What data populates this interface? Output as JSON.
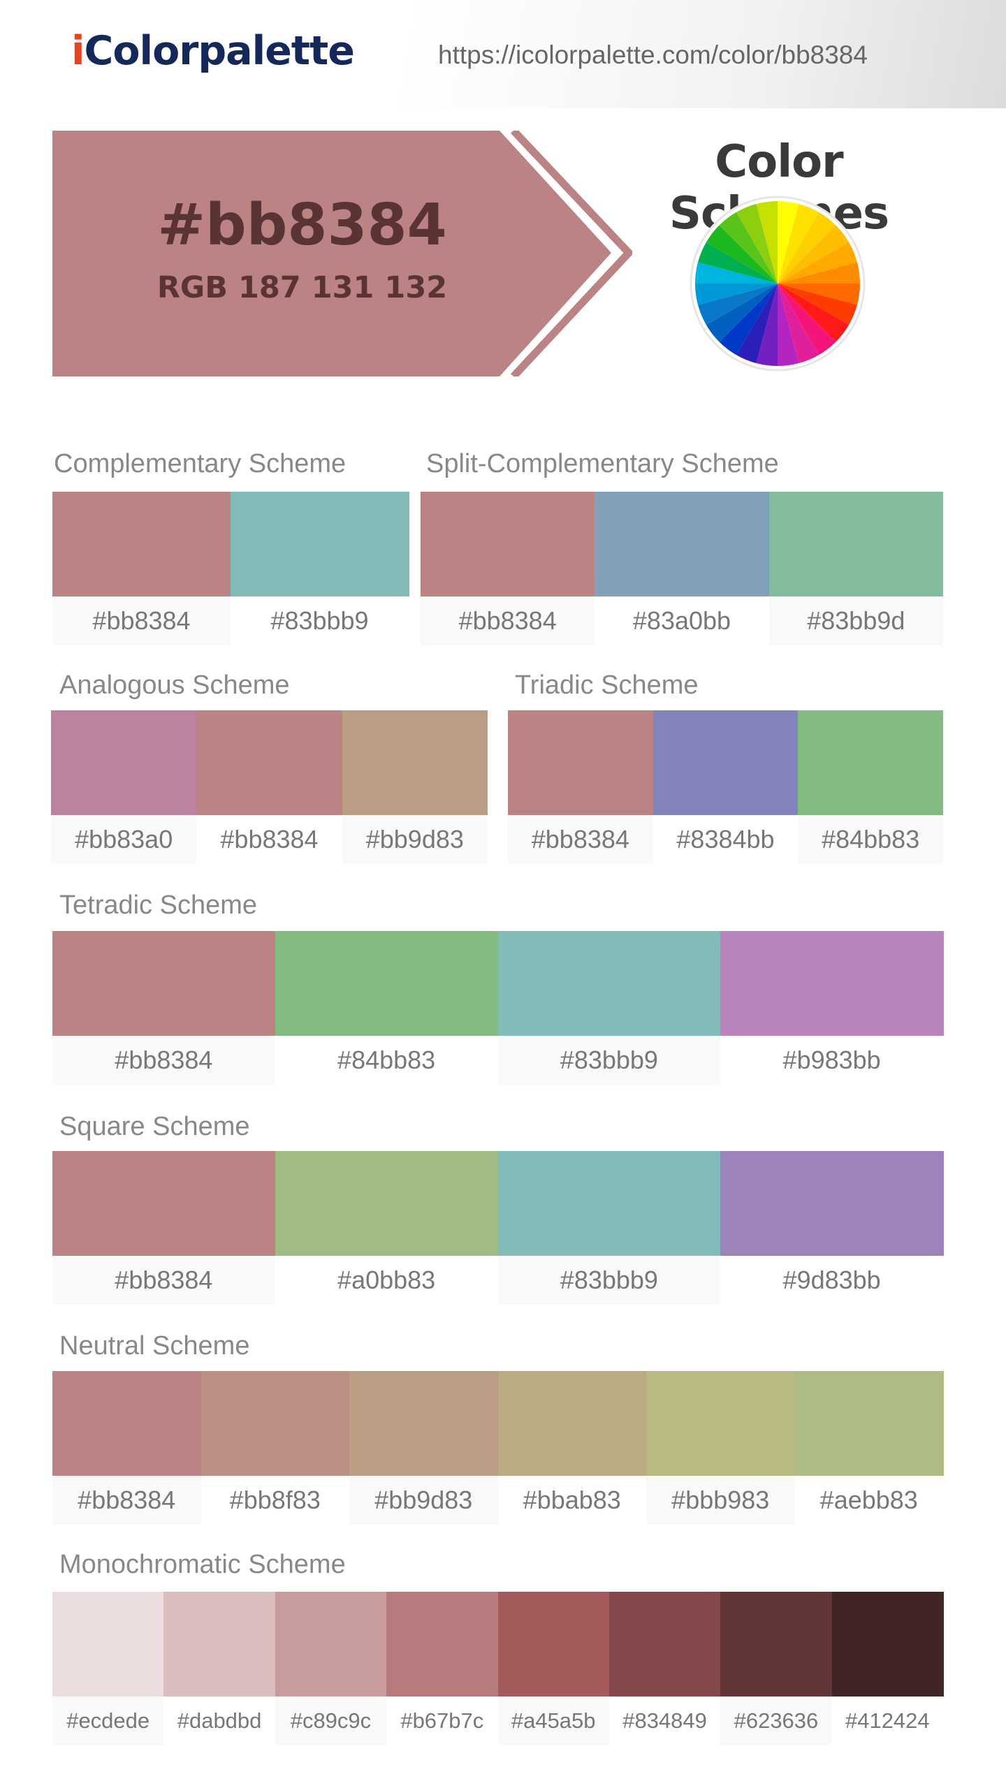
{
  "header": {
    "logo_i": "i",
    "logo_rest": "Colorpalette",
    "url": "https://icolorpalette.com/color/bb8384"
  },
  "hero": {
    "hex": "#bb8384",
    "rgb": "RGB 187 131 132",
    "color": "#bb8384"
  },
  "color_schemes_title": "Color Schemes",
  "wheel_colors": [
    "#ffff00",
    "#ffe100",
    "#ffd000",
    "#ffbe00",
    "#ffa800",
    "#ff8c00",
    "#ff6a00",
    "#ff3c00",
    "#ff1a1a",
    "#f5147a",
    "#e0209a",
    "#b424c0",
    "#7420c0",
    "#2a1fb8",
    "#0038c8",
    "#0060c0",
    "#0a78c8",
    "#0099d8",
    "#00b4e0",
    "#00b050",
    "#1db81d",
    "#5ac31a",
    "#8ccf10",
    "#c8e000"
  ],
  "schemes": {
    "complementary": {
      "title": "Complementary Scheme",
      "colors": [
        {
          "hex": "#bb8384"
        },
        {
          "hex": "#83bbb9"
        }
      ]
    },
    "split": {
      "title": "Split-Complementary Scheme",
      "colors": [
        {
          "hex": "#bb8384"
        },
        {
          "hex": "#83a0bb"
        },
        {
          "hex": "#83bb9d"
        }
      ]
    },
    "analogous": {
      "title": "Analogous Scheme",
      "colors": [
        {
          "hex": "#bb83a0"
        },
        {
          "hex": "#bb8384"
        },
        {
          "hex": "#bb9d83"
        }
      ]
    },
    "triadic": {
      "title": "Triadic Scheme",
      "colors": [
        {
          "hex": "#bb8384"
        },
        {
          "hex": "#8384bb"
        },
        {
          "hex": "#84bb83"
        }
      ]
    },
    "tetradic": {
      "title": "Tetradic Scheme",
      "colors": [
        {
          "hex": "#bb8384"
        },
        {
          "hex": "#84bb83"
        },
        {
          "hex": "#83bbb9"
        },
        {
          "hex": "#b983bb"
        }
      ]
    },
    "square": {
      "title": "Square Scheme",
      "colors": [
        {
          "hex": "#bb8384"
        },
        {
          "hex": "#a0bb83"
        },
        {
          "hex": "#83bbb9"
        },
        {
          "hex": "#9d83bb"
        }
      ]
    },
    "neutral": {
      "title": "Neutral Scheme",
      "colors": [
        {
          "hex": "#bb8384"
        },
        {
          "hex": "#bb8f83"
        },
        {
          "hex": "#bb9d83"
        },
        {
          "hex": "#bbab83"
        },
        {
          "hex": "#bbb983"
        },
        {
          "hex": "#aebb83"
        }
      ]
    },
    "monochromatic": {
      "title": "Monochromatic Scheme",
      "colors": [
        {
          "hex": "#ecdede"
        },
        {
          "hex": "#dabdbd"
        },
        {
          "hex": "#c89c9c"
        },
        {
          "hex": "#b67b7c"
        },
        {
          "hex": "#a45a5b"
        },
        {
          "hex": "#834849"
        },
        {
          "hex": "#623636"
        },
        {
          "hex": "#412424"
        }
      ]
    }
  }
}
